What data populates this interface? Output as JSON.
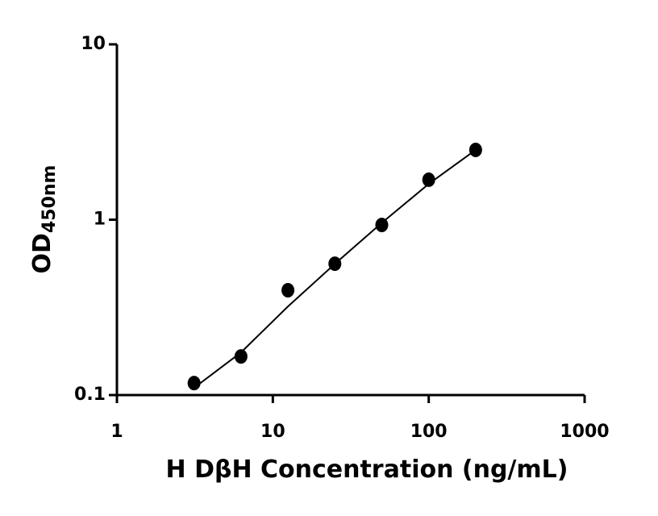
{
  "chart_data": {
    "type": "scatter",
    "xlabel": "H DβH Concentration (ng/mL)",
    "ylabel": "OD",
    "ylabel_subscript": "450nm",
    "x": [
      3.125,
      6.25,
      12.5,
      25,
      50,
      100,
      200
    ],
    "values": [
      0.117,
      0.166,
      0.396,
      0.561,
      0.933,
      1.69,
      2.5
    ],
    "color": "#000000",
    "curve": {
      "x": [
        3.125,
        6.25,
        12.5,
        25,
        50,
        100,
        200
      ],
      "values": [
        0.11,
        0.175,
        0.32,
        0.56,
        0.96,
        1.6,
        2.5
      ]
    },
    "xscale": "log",
    "yscale": "log",
    "xlim": [
      1,
      1000
    ],
    "ylim": [
      0.1,
      10
    ],
    "xticks": [
      1,
      10,
      100,
      1000
    ],
    "yticks": [
      0.1,
      1,
      10
    ],
    "grid": false
  }
}
